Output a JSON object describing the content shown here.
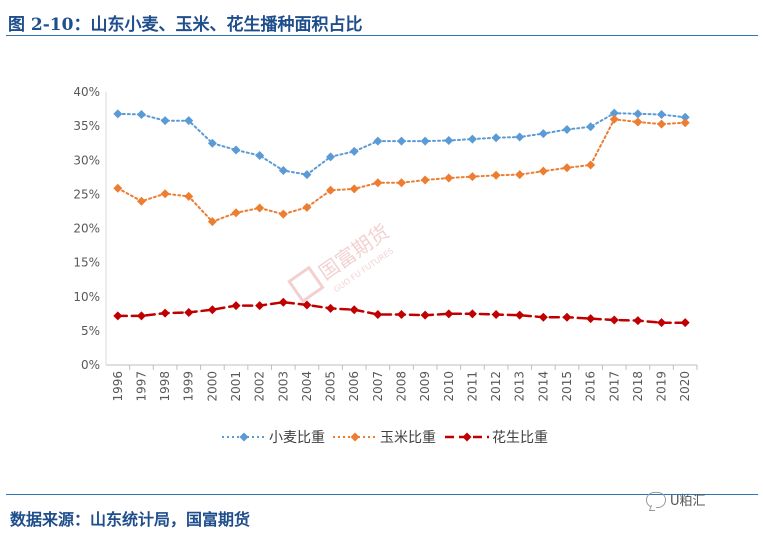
{
  "figure": {
    "title": "图 2-10：山东小麦、玉米、花生播种面积占比",
    "source": "数据来源：山东统计局，国富期货",
    "watermark_badge": "U粕汇",
    "logo_text": "国富期货",
    "logo_subtext": "GUO FU FUTURES"
  },
  "colors": {
    "title": "#1f4e8c",
    "rule": "#2e75b6"
  },
  "chart_data": {
    "type": "line",
    "categories": [
      "1996",
      "1997",
      "1998",
      "1999",
      "2000",
      "2001",
      "2002",
      "2003",
      "2004",
      "2005",
      "2006",
      "2007",
      "2008",
      "2009",
      "2010",
      "2011",
      "2012",
      "2013",
      "2014",
      "2015",
      "2016",
      "2017",
      "2018",
      "2019",
      "2020"
    ],
    "series": [
      {
        "name": "小麦比重",
        "color": "#5b9bd5",
        "dash": "2,3",
        "marker": "diamond",
        "values": [
          36.8,
          36.7,
          35.8,
          35.8,
          32.5,
          31.5,
          30.7,
          28.5,
          27.9,
          30.5,
          31.3,
          32.8,
          32.8,
          32.8,
          32.9,
          33.1,
          33.3,
          33.4,
          33.9,
          34.5,
          34.9,
          36.9,
          36.8,
          36.7,
          36.3
        ]
      },
      {
        "name": "玉米比重",
        "color": "#ed7d31",
        "dash": "2,3",
        "marker": "diamond",
        "values": [
          25.9,
          24.0,
          25.1,
          24.7,
          21.0,
          22.3,
          23.0,
          22.1,
          23.1,
          25.6,
          25.8,
          26.7,
          26.7,
          27.1,
          27.4,
          27.6,
          27.8,
          27.9,
          28.4,
          28.9,
          29.3,
          36.0,
          35.6,
          35.3,
          35.5
        ]
      },
      {
        "name": "花生比重",
        "color": "#c00000",
        "dash": "9,5",
        "marker": "diamond",
        "values": [
          7.2,
          7.2,
          7.6,
          7.7,
          8.1,
          8.7,
          8.7,
          9.2,
          8.8,
          8.3,
          8.1,
          7.4,
          7.4,
          7.3,
          7.5,
          7.5,
          7.4,
          7.3,
          7.0,
          7.0,
          6.8,
          6.6,
          6.5,
          6.2,
          6.2
        ]
      }
    ],
    "yticks": [
      "0%",
      "5%",
      "10%",
      "15%",
      "20%",
      "25%",
      "30%",
      "35%",
      "40%"
    ],
    "ylim": [
      0,
      40
    ],
    "xlabel": "",
    "ylabel": "",
    "grid": false,
    "legend_position": "bottom"
  }
}
